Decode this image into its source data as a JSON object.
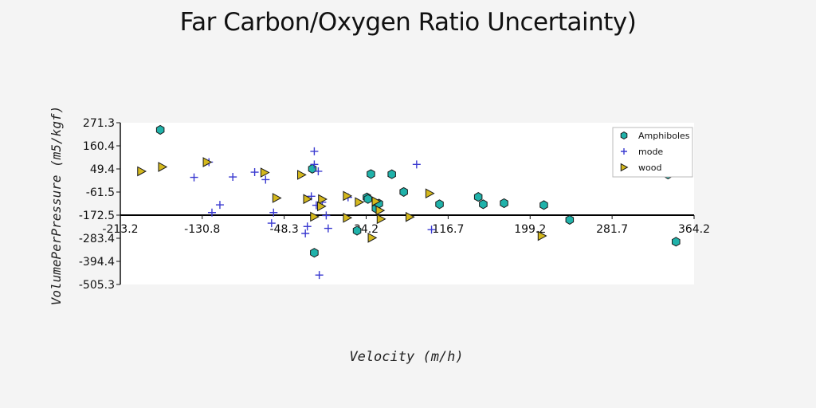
{
  "chart_data": {
    "type": "scatter",
    "title": "Far Carbon/Oxygen Ratio Uncertainty)",
    "xlabel": "Velocity (m/h)",
    "ylabel": "VolumePerPressure (m5/kgf)",
    "xlim": [
      -213.2,
      364.2
    ],
    "ylim": [
      -505.3,
      271.3
    ],
    "xticks": [
      "-213.2",
      "-130.8",
      "-48.3",
      "34.2",
      "116.7",
      "199.2",
      "281.7",
      "364.2"
    ],
    "yticks": [
      "271.3",
      "160.4",
      "49.4",
      "-61.5",
      "-172.5",
      "-283.4",
      "-394.4",
      "-505.3"
    ],
    "grid": false,
    "legend_position": "top-right",
    "colors": {
      "Amphiboles": "#20b2aa",
      "mode": "#3a3ad0",
      "wood": "#d4b81c",
      "baseline": "#000000"
    },
    "series": [
      {
        "name": "Amphiboles",
        "marker": "hexagon",
        "x": [
          -173,
          -20,
          -18,
          25,
          35,
          36,
          39,
          44,
          47,
          60,
          72,
          108,
          147,
          152,
          173,
          213,
          239,
          338,
          346
        ],
        "y": [
          237,
          50,
          -353,
          -247,
          -87,
          -95,
          25,
          -140,
          -117,
          24,
          -61,
          -120,
          -85,
          -120,
          -115,
          -124,
          -195,
          23,
          -300
        ]
      },
      {
        "name": "mode",
        "marker": "plus",
        "x": [
          -139,
          -124,
          -121,
          -113,
          -100,
          -78,
          -67,
          -61,
          -59,
          -27,
          -25,
          -21,
          -18,
          -18,
          -16,
          -14,
          -13,
          -10,
          -6,
          -4,
          16,
          85,
          100
        ],
        "y": [
          9,
          82,
          -160,
          -123,
          11,
          34,
          -2,
          -211,
          -160,
          -260,
          -227,
          -82,
          134,
          71,
          -125,
          38,
          -460,
          -110,
          -174,
          -236,
          -87,
          71,
          -242
        ]
      },
      {
        "name": "wood",
        "marker": "triangle-right",
        "x": [
          -192,
          -171,
          -126,
          -68,
          -56,
          -31,
          -25,
          -18,
          -10,
          -11,
          15,
          15,
          27,
          40,
          44,
          48,
          49,
          78,
          98,
          211
        ],
        "y": [
          38,
          59,
          82,
          32,
          -90,
          21,
          -95,
          -180,
          -96,
          -130,
          -80,
          -185,
          -110,
          -281,
          -106,
          -150,
          -191,
          -181,
          -68,
          -272
        ]
      }
    ]
  }
}
